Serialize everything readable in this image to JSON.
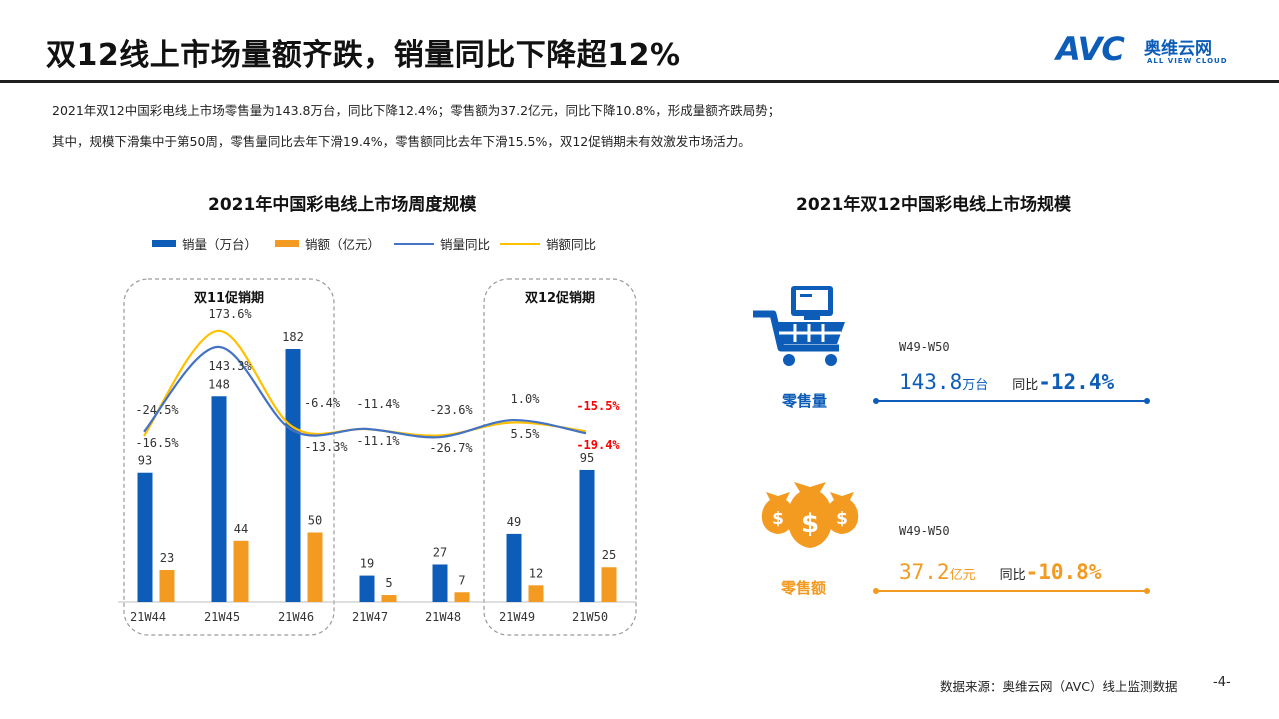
{
  "header": {
    "title": "双12线上市场量额齐跌，销量同比下降超12%",
    "logo": {
      "brand": "AVC",
      "cn": "奥维云网",
      "en": "ALL VIEW CLOUD",
      "color": "#0d5db8"
    }
  },
  "description": {
    "line1": "2021年双12中国彩电线上市场零售量为143.8万台，同比下降12.4%；零售额为37.2亿元，同比下降10.8%，形成量额齐跌局势；",
    "line2": "其中，规模下滑集中于第50周，零售量同比去年下滑19.4%，零售额同比去年下滑15.5%，双12促销期未有效激发市场活力。"
  },
  "chart_data": [
    {
      "type": "bar",
      "title": "2021年中国彩电线上市场周度规模",
      "categories": [
        "21W44",
        "21W45",
        "21W46",
        "21W47",
        "21W48",
        "21W49",
        "21W50"
      ],
      "legend": [
        "销量（万台）",
        "销额（亿元）",
        "销量同比",
        "销额同比"
      ],
      "legend_position": "top",
      "grid": false,
      "series": [
        {
          "name": "销量（万台）",
          "kind": "bar",
          "color": "#0d5db8",
          "values": [
            93,
            148,
            182,
            19,
            27,
            49,
            95
          ]
        },
        {
          "name": "销额（亿元）",
          "kind": "bar",
          "color": "#f39a21",
          "values": [
            23,
            44,
            50,
            5,
            7,
            12,
            25
          ]
        },
        {
          "name": "销量同比",
          "kind": "line",
          "color": "#4472c4",
          "values": [
            -16.5,
            143.3,
            -13.3,
            -11.1,
            -26.7,
            5.5,
            -19.4
          ],
          "labels": [
            "-16.5%",
            "143.3%",
            "-13.3%",
            "-11.1%",
            "-26.7%",
            "5.5%",
            "-19.4%"
          ]
        },
        {
          "name": "销额同比",
          "kind": "line",
          "color": "#ffc000",
          "values": [
            -24.5,
            173.6,
            -6.4,
            -11.4,
            -23.6,
            1.0,
            -15.5
          ],
          "labels": [
            "-24.5%",
            "173.6%",
            "-6.4%",
            "-11.4%",
            "-23.6%",
            "1.0%",
            "-15.5%"
          ]
        }
      ],
      "highlight_color": "#ff0000",
      "highlight_labels": [
        "-15.5%",
        "-19.4%"
      ],
      "promo_periods": [
        {
          "label": "双11促销期",
          "categories": [
            "21W44",
            "21W45",
            "21W46"
          ]
        },
        {
          "label": "双12促销期",
          "categories": [
            "21W49",
            "21W50"
          ]
        }
      ]
    }
  ],
  "summary": {
    "title": "2021年双12中国彩电线上市场规模",
    "volume": {
      "icon": "shopping-cart-icon",
      "label": "零售量",
      "period": "W49-W50",
      "value": "143.8",
      "unit": "万台",
      "yoy_label": "同比",
      "yoy": "-12.4%",
      "color": "#0d5db8"
    },
    "value": {
      "icon": "money-bags-icon",
      "label": "零售额",
      "period": "W49-W50",
      "value": "37.2",
      "unit": "亿元",
      "yoy_label": "同比",
      "yoy": "-10.8%",
      "color": "#f39a21"
    }
  },
  "footer": {
    "source": "数据来源：奥维云网（AVC）线上监测数据",
    "page": "-4-"
  }
}
